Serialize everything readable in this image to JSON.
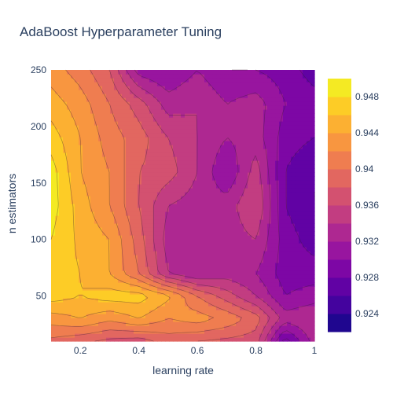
{
  "chart_data": {
    "type": "contour",
    "title": "AdaBoost Hyperparameter Tuning",
    "xlabel": "learning rate",
    "ylabel": "n estimators",
    "xlim": [
      0.1,
      1.0
    ],
    "ylim": [
      10,
      250
    ],
    "x_ticks": [
      0.2,
      0.4,
      0.6,
      0.8,
      1.0
    ],
    "x_tick_labels": [
      "0.2",
      "0.4",
      "0.6",
      "0.8",
      "1"
    ],
    "y_ticks": [
      50,
      100,
      150,
      200,
      250
    ],
    "y_tick_labels": [
      "50",
      "100",
      "150",
      "200",
      "250"
    ],
    "colorbar": {
      "ticks": [
        0.924,
        0.928,
        0.932,
        0.936,
        0.94,
        0.944,
        0.948
      ],
      "tick_labels": [
        "0.924",
        "0.928",
        "0.932",
        "0.936",
        "0.94",
        "0.944",
        "0.948"
      ],
      "zmin": 0.922,
      "zmax": 0.95,
      "contour_step": 0.002,
      "colorscale": [
        "#0d0887",
        "#46039f",
        "#7201a8",
        "#9c179e",
        "#bd3786",
        "#d8576b",
        "#ed7953",
        "#fb9f3a",
        "#fdca26",
        "#f0f921"
      ]
    },
    "x": [
      0.1,
      0.2,
      0.3,
      0.4,
      0.5,
      0.6,
      0.7,
      0.8,
      0.9,
      1.0
    ],
    "y": [
      10,
      30,
      50,
      70,
      100,
      130,
      160,
      190,
      220,
      250
    ],
    "z": [
      [
        0.9395,
        0.9385,
        0.9375,
        0.937,
        0.939,
        0.938,
        0.9375,
        0.937,
        0.927,
        0.933
      ],
      [
        0.943,
        0.944,
        0.9425,
        0.944,
        0.942,
        0.943,
        0.9415,
        0.939,
        0.933,
        0.934
      ],
      [
        0.947,
        0.946,
        0.947,
        0.947,
        0.9445,
        0.94,
        0.937,
        0.934,
        0.93,
        0.931
      ],
      [
        0.947,
        0.946,
        0.944,
        0.94,
        0.934,
        0.932,
        0.933,
        0.932,
        0.929,
        0.929
      ],
      [
        0.948,
        0.9455,
        0.944,
        0.939,
        0.933,
        0.932,
        0.933,
        0.934,
        0.929,
        0.927
      ],
      [
        0.949,
        0.945,
        0.942,
        0.938,
        0.934,
        0.933,
        0.933,
        0.936,
        0.928,
        0.926
      ],
      [
        0.949,
        0.944,
        0.942,
        0.938,
        0.937,
        0.934,
        0.93,
        0.935,
        0.928,
        0.926
      ],
      [
        0.947,
        0.944,
        0.941,
        0.939,
        0.936,
        0.934,
        0.932,
        0.933,
        0.929,
        0.928
      ],
      [
        0.945,
        0.943,
        0.94,
        0.937,
        0.933,
        0.934,
        0.932,
        0.933,
        0.93,
        0.929
      ],
      [
        0.943,
        0.941,
        0.938,
        0.931,
        0.93,
        0.932,
        0.93,
        0.93,
        0.929,
        0.927
      ]
    ]
  }
}
